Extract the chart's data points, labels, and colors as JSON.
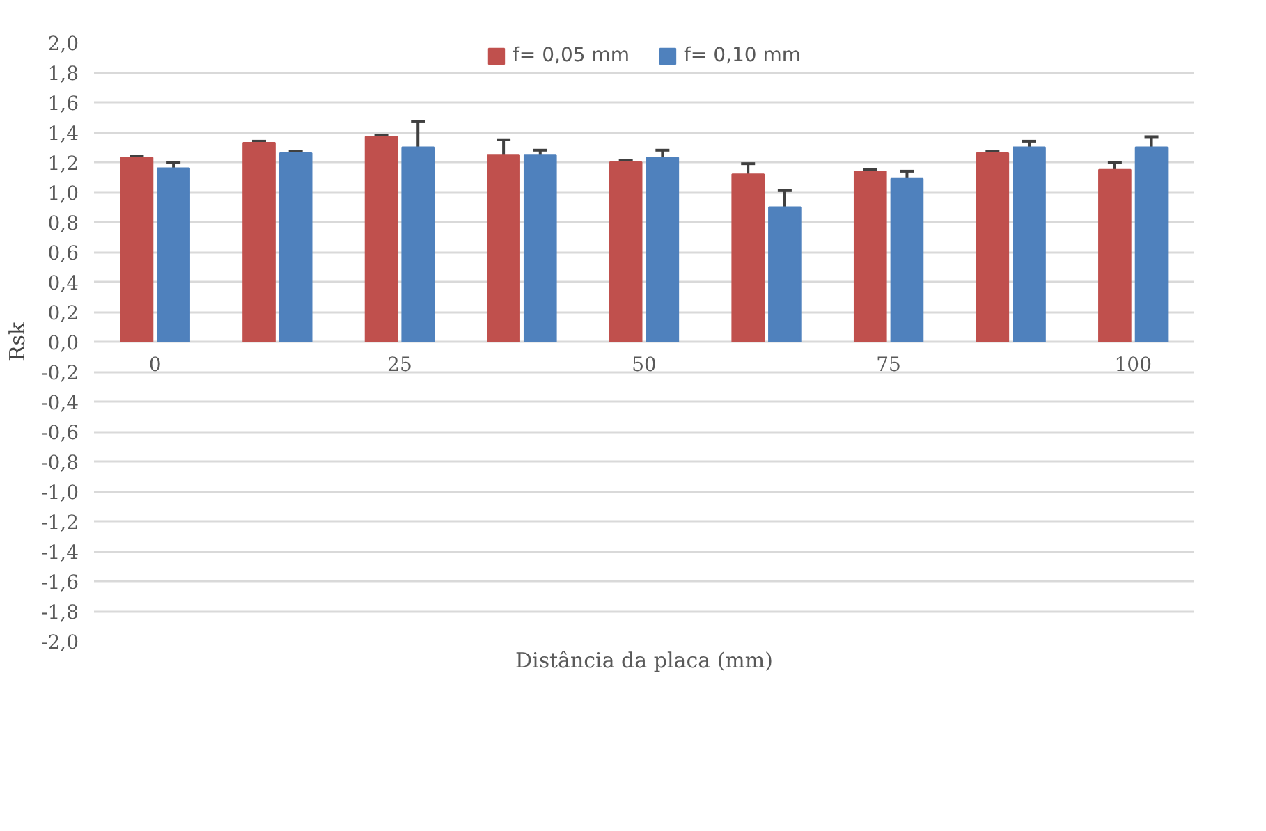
{
  "chart_data": {
    "type": "bar",
    "xlabel": "Distância da placa (mm)",
    "ylabel": "Rsk",
    "categories": [
      "0",
      null,
      "25",
      null,
      "50",
      null,
      "75",
      null,
      "100"
    ],
    "series": [
      {
        "name": "f= 0,05 mm",
        "color": "#c0504d",
        "values": [
          1.23,
          1.33,
          1.37,
          1.25,
          1.2,
          1.12,
          1.14,
          1.26,
          1.15
        ],
        "errors": [
          0.01,
          0.01,
          0.01,
          0.1,
          0.01,
          0.07,
          0.01,
          0.01,
          0.05
        ]
      },
      {
        "name": "f= 0,10 mm",
        "color": "#4f81bd",
        "values": [
          1.16,
          1.26,
          1.3,
          1.25,
          1.23,
          0.9,
          1.09,
          1.3,
          1.3
        ],
        "errors": [
          0.04,
          0.01,
          0.17,
          0.03,
          0.05,
          0.11,
          0.05,
          0.04,
          0.07
        ]
      }
    ],
    "ylim": [
      -2.0,
      2.0
    ],
    "yticks": [
      {
        "value": -2.0,
        "label": "-2,0"
      },
      {
        "value": -1.8,
        "label": "-1,8"
      },
      {
        "value": -1.6,
        "label": "-1,6"
      },
      {
        "value": -1.4,
        "label": "-1,4"
      },
      {
        "value": -1.2,
        "label": "-1,2"
      },
      {
        "value": -1.0,
        "label": "-1,0"
      },
      {
        "value": -0.8,
        "label": "-0,8"
      },
      {
        "value": -0.6,
        "label": "-0,6"
      },
      {
        "value": -0.4,
        "label": "-0,4"
      },
      {
        "value": -0.2,
        "label": "-0,2"
      },
      {
        "value": 0.0,
        "label": "0,0"
      },
      {
        "value": 0.2,
        "label": "0,2"
      },
      {
        "value": 0.4,
        "label": "0,4"
      },
      {
        "value": 0.6,
        "label": "0,6"
      },
      {
        "value": 0.8,
        "label": "0,8"
      },
      {
        "value": 1.0,
        "label": "1,0"
      },
      {
        "value": 1.2,
        "label": "1,2"
      },
      {
        "value": 1.4,
        "label": "1,4"
      },
      {
        "value": 1.6,
        "label": "1,6"
      },
      {
        "value": 1.8,
        "label": "1,8"
      },
      {
        "value": 2.0,
        "label": "2,0"
      }
    ],
    "grid": "y",
    "legend": "top"
  }
}
